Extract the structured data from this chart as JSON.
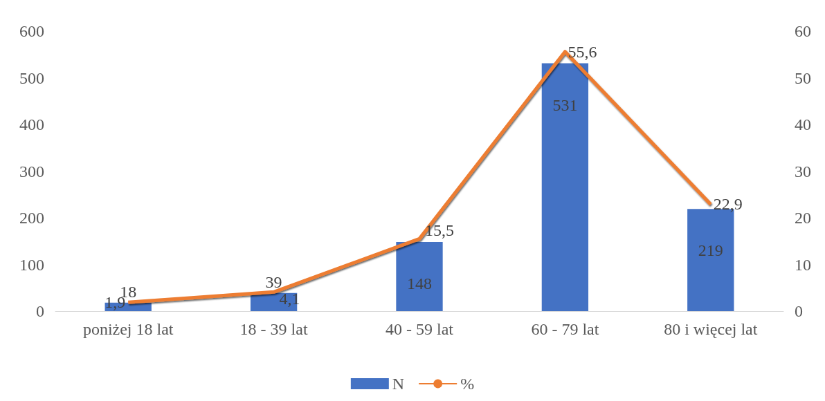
{
  "chart_data": {
    "type": "bar",
    "categories": [
      "poniżej 18 lat",
      "18 - 39 lat",
      "40 - 59 lat",
      "60 - 79 lat",
      "80 i więcej lat"
    ],
    "series": [
      {
        "name": "N",
        "color": "#4472c4",
        "values": [
          18,
          39,
          148,
          531,
          219
        ],
        "value_labels": [
          "18",
          "39",
          "148",
          "531",
          "219"
        ]
      },
      {
        "name": "%",
        "type": "line",
        "axis": "y2",
        "color": "#ed7d31",
        "values": [
          1.9,
          4.1,
          15.5,
          55.6,
          22.9
        ],
        "value_labels": [
          "1,9",
          "4,1",
          "15,5",
          "55,6",
          "22,9"
        ]
      }
    ],
    "ylim": [
      0,
      600
    ],
    "yticks": [
      0,
      100,
      200,
      300,
      400,
      500,
      600
    ],
    "y2lim": [
      0,
      60
    ],
    "y2ticks": [
      0,
      10,
      20,
      30,
      40,
      50,
      60
    ],
    "grid": false,
    "legend": "bottom",
    "marker": "none",
    "line_style": "solid"
  }
}
